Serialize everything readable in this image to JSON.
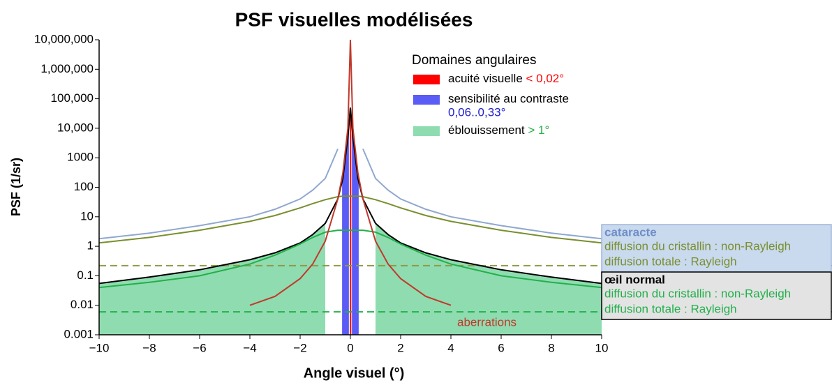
{
  "chart_data": {
    "type": "line",
    "title": "PSF visuelles modélisées",
    "x_label": "Angle visuel (°)",
    "y_label": "PSF (1/sr)",
    "log_y": true,
    "xlim": [
      -10,
      10
    ],
    "ylim": [
      0.001,
      10000000
    ],
    "xticks": [
      {
        "value": -10,
        "label": "−10"
      },
      {
        "value": -8,
        "label": "−8"
      },
      {
        "value": -6,
        "label": "−6"
      },
      {
        "value": -4,
        "label": "−4"
      },
      {
        "value": -2,
        "label": "−2"
      },
      0,
      2,
      4,
      6,
      8,
      10
    ],
    "yticks": [
      0.001,
      0.01,
      0.1,
      1,
      10,
      100,
      1000,
      {
        "value": 10000,
        "label": "10,000"
      },
      {
        "value": 100000,
        "label": "100,000"
      },
      {
        "value": 1000000,
        "label": "1,000,000"
      },
      {
        "value": 10000000,
        "label": "10,000,000"
      }
    ],
    "x": [
      -10,
      -8,
      -6,
      -4,
      -3,
      -2,
      -1.5,
      -1,
      -0.5,
      -0.3,
      -0.1,
      0,
      0.1,
      0.3,
      0.5,
      1,
      1.5,
      2,
      3,
      4,
      6,
      8,
      10
    ],
    "series": [
      {
        "color": "#8fa8d0",
        "values": [
          1.8,
          2.8,
          5,
          10,
          18,
          40,
          80,
          200,
          2000,
          null,
          null,
          null,
          null,
          null,
          2000,
          200,
          80,
          40,
          18,
          10,
          5,
          2.8,
          1.8
        ]
      },
      {
        "color": "#7a8f2e",
        "values": [
          1.3,
          2,
          3.5,
          7,
          11,
          20,
          28,
          38,
          48,
          50,
          50,
          50,
          50,
          50,
          48,
          38,
          28,
          20,
          11,
          7,
          3.5,
          2,
          1.3
        ]
      },
      {
        "color": "#000000",
        "values": [
          0.055,
          0.09,
          0.16,
          0.35,
          0.6,
          1.3,
          2.5,
          6,
          40,
          200,
          5000,
          50000,
          5000,
          200,
          40,
          6,
          2.5,
          1.3,
          0.6,
          0.35,
          0.16,
          0.09,
          0.055
        ]
      },
      {
        "color": "#22b04b",
        "values": [
          0.04,
          0.06,
          0.1,
          0.25,
          0.5,
          1.2,
          2,
          3,
          3.5,
          3.5,
          3.5,
          3.5,
          3.5,
          3.5,
          3.5,
          3,
          2,
          1.2,
          0.5,
          0.25,
          0.1,
          0.06,
          0.04
        ]
      },
      {
        "color": "#c0392b",
        "values": [
          null,
          null,
          null,
          0.01,
          0.02,
          0.08,
          0.25,
          1.5,
          40,
          300,
          10000,
          10000000,
          10000,
          300,
          40,
          1.5,
          0.25,
          0.08,
          0.02,
          0.01,
          null,
          null,
          null
        ]
      }
    ],
    "hlines": [
      {
        "value": 0.22,
        "color": "#8f9a4a"
      },
      {
        "value": 0.006,
        "color": "#22b04b"
      }
    ],
    "legend_title": "Domaines angulaires",
    "angular_domains": [
      {
        "name": "acuité visuelle",
        "threshold": "< 0,02°",
        "color": "#ff0000",
        "ranges": [
          [
            -0.02,
            0.02
          ]
        ]
      },
      {
        "name": "sensibilité au contraste",
        "threshold": "0,06..0,33°",
        "color": "#5b5bf5",
        "text_color": "#2020d0",
        "ranges": [
          [
            -0.33,
            -0.06
          ],
          [
            0.06,
            0.33
          ]
        ]
      },
      {
        "name": "éblouissement",
        "threshold": "> 1°",
        "color": "#8fdcb0",
        "text_color": "#22b04b",
        "ranges": [
          [
            -10,
            -1
          ],
          [
            1,
            10
          ]
        ]
      }
    ],
    "annotation": "aberrations",
    "panels": [
      {
        "title": "cataracte",
        "title_color": "#6f8fc8",
        "color": "#7a8f2e",
        "background": "#c9d9ee",
        "border": "#9fb5d8",
        "items": [
          "diffusion du cristallin : non-Rayleigh",
          "diffusion totale : Rayleigh"
        ]
      },
      {
        "title": "œil normal",
        "title_color": "#000000",
        "color": "#22b04b",
        "background": "#e3e3e3",
        "border": "#000000",
        "items": [
          "diffusion du cristallin : non-Rayleigh",
          "diffusion totale : Rayleigh"
        ]
      }
    ]
  }
}
